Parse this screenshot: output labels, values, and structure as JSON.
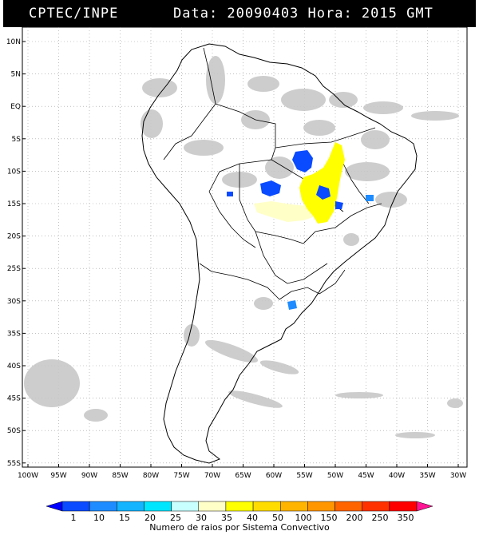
{
  "header": {
    "source": "CPTEC/INPE",
    "datetime": "Data: 20090403 Hora: 2015 GMT"
  },
  "map": {
    "lat_labels": [
      "10N",
      "5N",
      "EQ",
      "5S",
      "10S",
      "15S",
      "20S",
      "25S",
      "30S",
      "35S",
      "40S",
      "45S",
      "50S",
      "55S"
    ],
    "lon_labels": [
      "100W",
      "95W",
      "90W",
      "85W",
      "80W",
      "75W",
      "70W",
      "65W",
      "60W",
      "55W",
      "50W",
      "45W",
      "40W",
      "35W",
      "30W"
    ],
    "grid": "dotted",
    "colors": {
      "cloud": "#c8c8c8",
      "coast": "#000000",
      "grid": "#9a9a9a"
    }
  },
  "legend": {
    "caption": "Numero de raios por Sistema Convectivo",
    "ticks": [
      "1",
      "10",
      "15",
      "20",
      "25",
      "30",
      "35",
      "40",
      "50",
      "100",
      "150",
      "200",
      "250",
      "350"
    ],
    "colors": [
      "#0000ff",
      "#0a4bff",
      "#1e8cff",
      "#14b4ff",
      "#00e6ff",
      "#c8ffff",
      "#ffffc8",
      "#ffff00",
      "#ffdc00",
      "#ffb400",
      "#ff9600",
      "#ff6400",
      "#ff3200",
      "#ff0000",
      "#ff1493"
    ]
  }
}
